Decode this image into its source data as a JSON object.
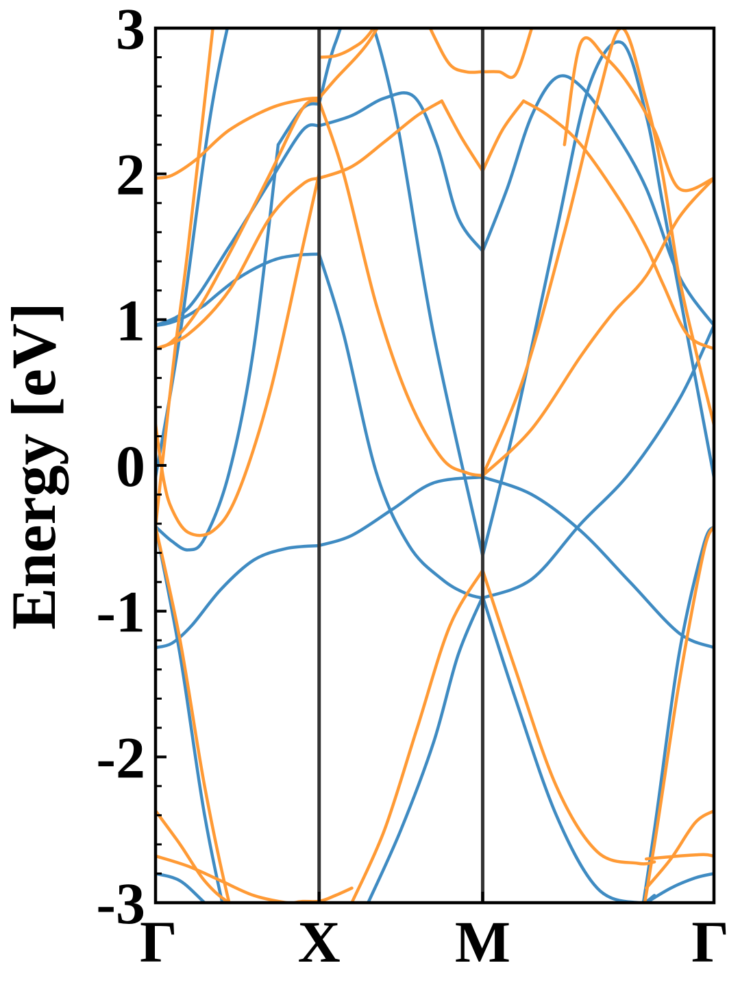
{
  "chart_data": {
    "type": "line",
    "title": "",
    "xlabel": "",
    "ylabel": "Energy [eV]",
    "ylim": [
      -3,
      3
    ],
    "xlim": [
      0,
      3.414
    ],
    "grid": false,
    "legend": "none",
    "high_symmetry_points": [
      {
        "label": "Γ",
        "x": 0
      },
      {
        "label": "X",
        "x": 1
      },
      {
        "label": "M",
        "x": 2
      },
      {
        "label": "Γ",
        "x": 3.414
      }
    ],
    "yticks": [
      {
        "value": 3,
        "label": "3"
      },
      {
        "value": 2,
        "label": "2"
      },
      {
        "value": 1,
        "label": "1"
      },
      {
        "value": 0,
        "label": "0"
      },
      {
        "value": -1,
        "label": "-1"
      },
      {
        "value": -2,
        "label": "-2"
      },
      {
        "value": -3,
        "label": "-3"
      }
    ],
    "colors": {
      "blue": "#3f8bc2",
      "orange": "#ff9a35",
      "divider": "#333333",
      "axis": "#000000"
    },
    "series": [
      {
        "color": "blue",
        "x": [
          0,
          0.06,
          0.12,
          0.2,
          0.3
        ],
        "values": [
          0.96,
          0.97,
          0.99,
          1.03,
          1.1
        ]
      },
      {
        "color": "blue",
        "x": [
          0.3,
          0.5,
          0.7,
          0.85,
          1.0
        ],
        "values": [
          1.1,
          1.28,
          1.4,
          1.44,
          1.45
        ]
      },
      {
        "color": "blue",
        "x": [
          1.0,
          1.15,
          1.35,
          1.55,
          1.75,
          1.9,
          2.0
        ],
        "values": [
          1.45,
          0.9,
          -0.05,
          -0.55,
          -0.78,
          -0.88,
          -0.91
        ]
      },
      {
        "color": "blue",
        "x": [
          2.0,
          2.3,
          2.6,
          2.9,
          3.2,
          3.414
        ],
        "values": [
          -0.91,
          -0.78,
          -0.4,
          -0.05,
          0.45,
          0.96
        ]
      },
      {
        "color": "blue",
        "x": [
          0,
          0.2,
          0.45,
          0.7,
          0.9,
          1.0
        ],
        "values": [
          0.96,
          1.08,
          1.5,
          1.95,
          2.3,
          2.33
        ]
      },
      {
        "color": "blue",
        "x": [
          1.0,
          1.2,
          1.4,
          1.58,
          1.72,
          1.85,
          2.0
        ],
        "values": [
          2.33,
          2.4,
          2.52,
          2.53,
          2.2,
          1.7,
          1.47
        ]
      },
      {
        "color": "blue",
        "x": [
          2.0,
          2.15,
          2.3,
          2.45,
          2.6,
          2.8,
          3.0,
          3.2,
          3.414
        ],
        "values": [
          1.47,
          1.9,
          2.4,
          2.66,
          2.6,
          2.3,
          1.9,
          1.3,
          0.96
        ]
      },
      {
        "color": "blue",
        "x": [
          0,
          0.1,
          0.22,
          0.4,
          0.6,
          0.8,
          1.0
        ],
        "values": [
          -1.25,
          -1.22,
          -1.1,
          -0.85,
          -0.65,
          -0.57,
          -0.55
        ]
      },
      {
        "color": "blue",
        "x": [
          1.0,
          1.2,
          1.45,
          1.7,
          2.0
        ],
        "values": [
          -0.55,
          -0.48,
          -0.3,
          -0.12,
          -0.08
        ]
      },
      {
        "color": "blue",
        "x": [
          2.0,
          2.3,
          2.6,
          2.9,
          3.2,
          3.414
        ],
        "values": [
          -0.08,
          -0.2,
          -0.45,
          -0.8,
          -1.15,
          -1.25
        ]
      },
      {
        "color": "blue",
        "x": [
          0,
          0.1,
          0.2,
          0.3,
          0.45,
          0.6,
          0.75
        ],
        "values": [
          -0.42,
          -0.52,
          -0.58,
          -0.5,
          -0.05,
          0.8,
          2.2
        ]
      },
      {
        "color": "blue",
        "x": [
          0.75,
          0.9,
          1.0
        ],
        "values": [
          2.2,
          2.45,
          2.48
        ]
      },
      {
        "color": "blue",
        "x": [
          1.0,
          1.1,
          1.25,
          1.45,
          1.7,
          2.0
        ],
        "values": [
          2.48,
          2.9,
          3.2,
          2.5,
          0.9,
          -0.62
        ]
      },
      {
        "color": "blue",
        "x": [
          2.0,
          2.2,
          2.45,
          2.65,
          2.85,
          3.0,
          3.1,
          3.25,
          3.414
        ],
        "values": [
          -0.62,
          0.3,
          1.6,
          2.6,
          2.9,
          2.4,
          1.8,
          0.9,
          -0.08
        ]
      },
      {
        "color": "blue",
        "x": [
          0,
          0.15,
          0.35,
          0.55,
          0.7
        ],
        "values": [
          -0.08,
          0.9,
          2.5,
          3.5,
          4.0
        ]
      },
      {
        "color": "blue",
        "x": [
          0,
          0.15,
          0.3,
          0.45,
          0.6
        ],
        "values": [
          -0.42,
          -1.3,
          -2.4,
          -3.2,
          -3.8
        ]
      },
      {
        "color": "blue",
        "x": [
          1.3,
          1.5,
          1.7,
          1.85,
          2.0
        ],
        "values": [
          -3.0,
          -2.5,
          -1.9,
          -1.3,
          -0.9
        ]
      },
      {
        "color": "blue",
        "x": [
          2.0,
          2.2,
          2.45,
          2.7,
          2.95,
          3.05
        ],
        "values": [
          -0.9,
          -1.6,
          -2.4,
          -2.9,
          -3.0,
          -2.95
        ]
      },
      {
        "color": "blue",
        "x": [
          2.9,
          3.05,
          3.2,
          3.35,
          3.414
        ],
        "values": [
          -3.6,
          -2.5,
          -1.3,
          -0.55,
          -0.42
        ]
      },
      {
        "color": "blue",
        "x": [
          0,
          0.15,
          0.3,
          0.4
        ],
        "values": [
          -2.8,
          -2.85,
          -3.0,
          -3.1
        ]
      },
      {
        "color": "blue",
        "x": [
          3.0,
          3.15,
          3.3,
          3.414
        ],
        "values": [
          -3.0,
          -2.9,
          -2.83,
          -2.8
        ]
      },
      {
        "color": "orange",
        "x": [
          0,
          0.1,
          0.25,
          0.45,
          0.7,
          0.9,
          1.0
        ],
        "values": [
          0.8,
          0.85,
          1.05,
          1.45,
          2.0,
          2.45,
          2.5
        ]
      },
      {
        "color": "orange",
        "x": [
          1.0,
          1.15,
          1.35,
          1.55,
          1.75,
          1.9,
          2.0
        ],
        "values": [
          2.5,
          2.0,
          1.1,
          0.45,
          0.05,
          -0.05,
          -0.07
        ]
      },
      {
        "color": "orange",
        "x": [
          2.0,
          2.3,
          2.6,
          2.8,
          3.0,
          3.2,
          3.414
        ],
        "values": [
          -0.07,
          0.25,
          0.75,
          1.05,
          1.3,
          1.7,
          1.97
        ]
      },
      {
        "color": "orange",
        "x": [
          0,
          0.2,
          0.45,
          0.7,
          0.9,
          1.0
        ],
        "values": [
          0.8,
          0.9,
          1.2,
          1.7,
          1.93,
          1.97
        ]
      },
      {
        "color": "orange",
        "x": [
          1.0,
          1.2,
          1.4,
          1.6,
          1.75
        ],
        "values": [
          1.97,
          2.05,
          2.22,
          2.4,
          2.5
        ]
      },
      {
        "color": "orange",
        "x": [
          1.75,
          1.87,
          2.0
        ],
        "values": [
          2.5,
          2.25,
          2.02
        ]
      },
      {
        "color": "orange",
        "x": [
          2.0,
          2.12,
          2.25
        ],
        "values": [
          2.02,
          2.3,
          2.5
        ]
      },
      {
        "color": "orange",
        "x": [
          2.25,
          2.4,
          2.6,
          2.85,
          3.0,
          3.1,
          3.25,
          3.414
        ],
        "values": [
          2.5,
          2.4,
          2.2,
          1.8,
          1.5,
          1.25,
          0.9,
          0.8
        ]
      },
      {
        "color": "orange",
        "x": [
          0,
          0.1,
          0.25,
          0.45,
          0.7,
          0.9,
          1.0
        ],
        "values": [
          1.97,
          1.99,
          2.1,
          2.3,
          2.45,
          2.51,
          2.52
        ]
      },
      {
        "color": "orange",
        "x": [
          1.0,
          1.1,
          1.3,
          1.45
        ],
        "values": [
          2.52,
          2.65,
          2.9,
          3.2
        ]
      },
      {
        "color": "orange",
        "x": [
          1.0,
          1.1,
          1.2,
          1.3,
          1.45
        ],
        "values": [
          2.8,
          2.81,
          2.86,
          2.95,
          3.2
        ]
      },
      {
        "color": "orange",
        "x": [
          1.6,
          1.7,
          1.8,
          1.9,
          2.0,
          2.1,
          2.2,
          2.3
        ],
        "values": [
          3.2,
          2.95,
          2.75,
          2.7,
          2.7,
          2.7,
          2.68,
          3.0
        ]
      },
      {
        "color": "orange",
        "x": [
          2.5,
          2.6,
          2.75,
          2.9,
          3.05,
          3.2,
          3.414
        ],
        "values": [
          2.2,
          2.9,
          2.8,
          2.6,
          2.3,
          1.9,
          1.97
        ]
      },
      {
        "color": "orange",
        "x": [
          0,
          0.05,
          0.1,
          0.2,
          0.35,
          0.5,
          0.7,
          0.9,
          1.0
        ],
        "values": [
          0.28,
          -0.1,
          -0.3,
          -0.46,
          -0.45,
          -0.2,
          0.5,
          1.5,
          2.0
        ]
      },
      {
        "color": "orange",
        "x": [
          2.0,
          2.25,
          2.5,
          2.7,
          2.85,
          3.0,
          3.1,
          3.2,
          3.3,
          3.414
        ],
        "values": [
          -0.07,
          0.6,
          1.6,
          2.5,
          3.0,
          2.5,
          2.0,
          1.3,
          0.8,
          0.28
        ]
      },
      {
        "color": "orange",
        "x": [
          0,
          0.06,
          0.12,
          0.2,
          0.35
        ],
        "values": [
          -0.42,
          0.2,
          0.8,
          1.5,
          3.0
        ]
      },
      {
        "color": "orange",
        "x": [
          0,
          0.15,
          0.3,
          0.45,
          0.6
        ],
        "values": [
          -0.42,
          -1.2,
          -2.2,
          -3.0,
          -3.6
        ]
      },
      {
        "color": "orange",
        "x": [
          1.2,
          1.4,
          1.6,
          1.8,
          2.0
        ],
        "values": [
          -3.0,
          -2.5,
          -1.8,
          -1.1,
          -0.72
        ]
      },
      {
        "color": "orange",
        "x": [
          2.0,
          2.2,
          2.45,
          2.7,
          2.95,
          3.05
        ],
        "values": [
          -0.72,
          -1.4,
          -2.2,
          -2.65,
          -2.73,
          -2.72
        ]
      },
      {
        "color": "orange",
        "x": [
          2.9,
          3.05,
          3.2,
          3.35,
          3.414
        ],
        "values": [
          -3.6,
          -2.6,
          -1.5,
          -0.6,
          -0.42
        ]
      },
      {
        "color": "orange",
        "x": [
          0,
          0.15,
          0.3,
          0.45,
          0.65,
          0.85,
          1.0,
          1.1,
          1.2
        ],
        "values": [
          -2.37,
          -2.6,
          -2.85,
          -3.0,
          -3.1,
          -3.0,
          -2.99,
          -2.95,
          -2.9
        ]
      },
      {
        "color": "orange",
        "x": [
          0,
          0.2,
          0.4,
          0.6,
          0.8,
          1.0
        ],
        "values": [
          -2.68,
          -2.75,
          -2.85,
          -2.95,
          -3.0,
          -3.02
        ]
      },
      {
        "color": "orange",
        "x": [
          3.0,
          3.2,
          3.35,
          3.414
        ],
        "values": [
          -2.7,
          -2.68,
          -2.67,
          -2.68
        ]
      },
      {
        "color": "orange",
        "x": [
          3.0,
          3.15,
          3.3,
          3.414
        ],
        "values": [
          -2.9,
          -2.7,
          -2.45,
          -2.37
        ]
      }
    ]
  }
}
